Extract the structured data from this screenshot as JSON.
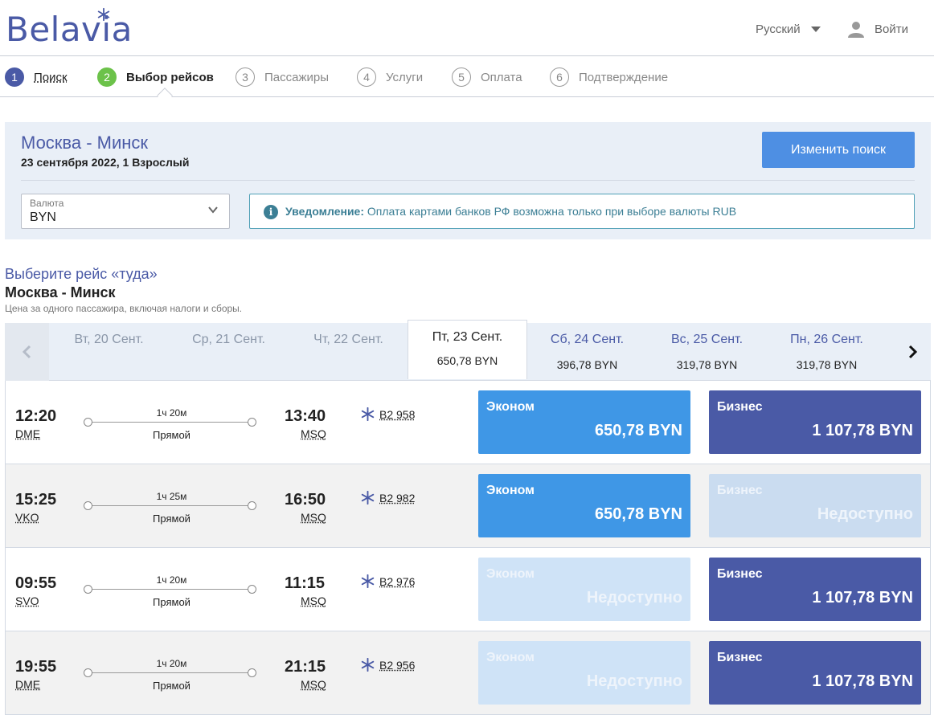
{
  "header": {
    "logo_text": "Belavia",
    "language": "Русский",
    "login_label": "Войти"
  },
  "steps": [
    {
      "num": "1",
      "label": "Поиск",
      "state": "done"
    },
    {
      "num": "2",
      "label": "Выбор рейсов",
      "state": "active"
    },
    {
      "num": "3",
      "label": "Пассажиры",
      "state": "pending"
    },
    {
      "num": "4",
      "label": "Услуги",
      "state": "pending"
    },
    {
      "num": "5",
      "label": "Оплата",
      "state": "pending"
    },
    {
      "num": "6",
      "label": "Подтверждение",
      "state": "pending"
    }
  ],
  "summary": {
    "route": "Москва - Минск",
    "details": "23 сентября 2022, 1 Взрослый",
    "change_button": "Изменить поиск",
    "currency_label": "Валюта",
    "currency_value": "BYN",
    "notice_title": "Уведомление:",
    "notice_text": "Оплата картами банков РФ возможна только при выборе валюты RUB"
  },
  "direction": {
    "title": "Выберите рейс «туда»",
    "route": "Москва - Минск",
    "note": "Цена за одного пассажира, включая налоги и сборы."
  },
  "dates": [
    {
      "label": "Вт, 20 Сент.",
      "price": ""
    },
    {
      "label": "Ср, 21 Сент.",
      "price": ""
    },
    {
      "label": "Чт, 22 Сент.",
      "price": ""
    },
    {
      "label": "Пт, 23 Сент.",
      "price": "650,78 BYN",
      "selected": true
    },
    {
      "label": "Сб, 24 Сент.",
      "price": "396,78 BYN"
    },
    {
      "label": "Вс, 25 Сент.",
      "price": "319,78 BYN"
    },
    {
      "label": "Пн, 26 Сент.",
      "price": "319,78 BYN"
    }
  ],
  "flights": [
    {
      "dep_time": "12:20",
      "dep_airport": "DME",
      "duration": "1ч 20м",
      "type": "Прямой",
      "arr_time": "13:40",
      "arr_airport": "MSQ",
      "flight_no": "B2 958",
      "economy": {
        "label": "Эконом",
        "price": "650,78 BYN",
        "available": true
      },
      "business": {
        "label": "Бизнес",
        "price": "1 107,78 BYN",
        "available": true
      }
    },
    {
      "dep_time": "15:25",
      "dep_airport": "VKO",
      "duration": "1ч 25м",
      "type": "Прямой",
      "arr_time": "16:50",
      "arr_airport": "MSQ",
      "flight_no": "B2 982",
      "economy": {
        "label": "Эконом",
        "price": "650,78 BYN",
        "available": true
      },
      "business": {
        "label": "Бизнес",
        "price": "Недоступно",
        "available": false
      }
    },
    {
      "dep_time": "09:55",
      "dep_airport": "SVO",
      "duration": "1ч 20м",
      "type": "Прямой",
      "arr_time": "11:15",
      "arr_airport": "MSQ",
      "flight_no": "B2 976",
      "economy": {
        "label": "Эконом",
        "price": "Недоступно",
        "available": false
      },
      "business": {
        "label": "Бизнес",
        "price": "1 107,78 BYN",
        "available": true
      }
    },
    {
      "dep_time": "19:55",
      "dep_airport": "DME",
      "duration": "1ч 20м",
      "type": "Прямой",
      "arr_time": "21:15",
      "arr_airport": "MSQ",
      "flight_no": "B2 956",
      "economy": {
        "label": "Эконом",
        "price": "Недоступно",
        "available": false
      },
      "business": {
        "label": "Бизнес",
        "price": "1 107,78 BYN",
        "available": true
      }
    }
  ],
  "colors": {
    "brand": "#4a5aa6",
    "step_active": "#6cc24a",
    "economy": "#3f97e6",
    "business": "#4a5aa6",
    "notice": "#3c7f95"
  }
}
